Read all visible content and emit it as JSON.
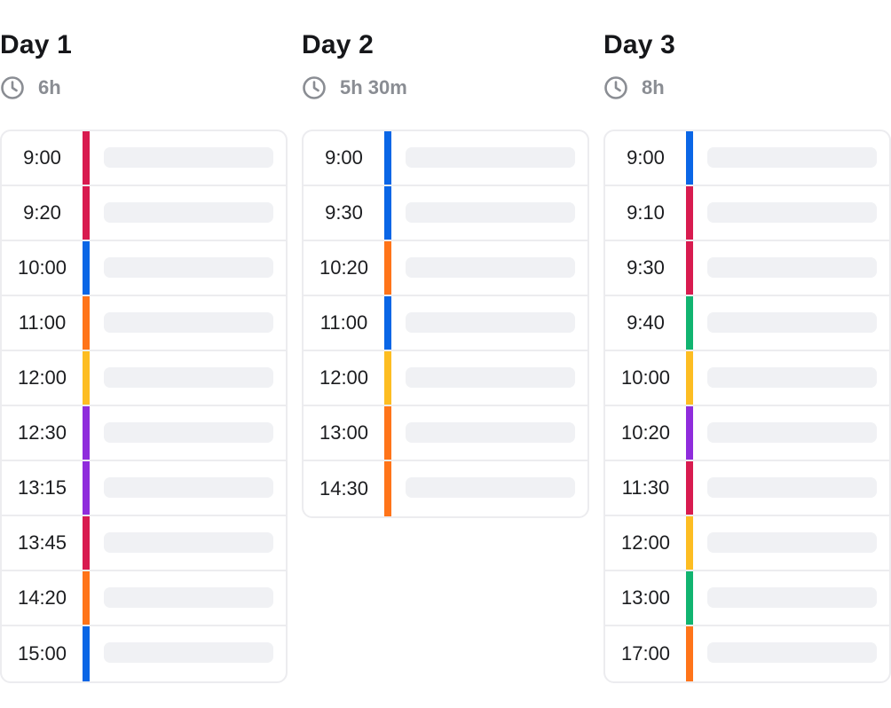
{
  "colors": {
    "red": "#d81b4f",
    "blue": "#0a66e6",
    "orange": "#ff7419",
    "yellow": "#fdbd22",
    "purple": "#8f2cdc",
    "green": "#11b470",
    "muted_text": "#8a8d93",
    "placeholder": "#f0f1f4",
    "border": "#ececef"
  },
  "days": [
    {
      "title": "Day 1",
      "duration": "6h",
      "duration_icon": "clock-icon",
      "slots": [
        {
          "time": "9:00",
          "color": "red"
        },
        {
          "time": "9:20",
          "color": "red"
        },
        {
          "time": "10:00",
          "color": "blue"
        },
        {
          "time": "11:00",
          "color": "orange"
        },
        {
          "time": "12:00",
          "color": "yellow"
        },
        {
          "time": "12:30",
          "color": "purple"
        },
        {
          "time": "13:15",
          "color": "purple"
        },
        {
          "time": "13:45",
          "color": "red"
        },
        {
          "time": "14:20",
          "color": "orange"
        },
        {
          "time": "15:00",
          "color": "blue"
        }
      ]
    },
    {
      "title": "Day 2",
      "duration": "5h 30m",
      "duration_icon": "clock-icon",
      "slots": [
        {
          "time": "9:00",
          "color": "blue"
        },
        {
          "time": "9:30",
          "color": "blue"
        },
        {
          "time": "10:20",
          "color": "orange"
        },
        {
          "time": "11:00",
          "color": "blue"
        },
        {
          "time": "12:00",
          "color": "yellow"
        },
        {
          "time": "13:00",
          "color": "orange"
        },
        {
          "time": "14:30",
          "color": "orange"
        }
      ]
    },
    {
      "title": "Day 3",
      "duration": "8h",
      "duration_icon": "clock-icon",
      "slots": [
        {
          "time": "9:00",
          "color": "blue"
        },
        {
          "time": "9:10",
          "color": "red"
        },
        {
          "time": "9:30",
          "color": "red"
        },
        {
          "time": "9:40",
          "color": "green"
        },
        {
          "time": "10:00",
          "color": "yellow"
        },
        {
          "time": "10:20",
          "color": "purple"
        },
        {
          "time": "11:30",
          "color": "red"
        },
        {
          "time": "12:00",
          "color": "yellow"
        },
        {
          "time": "13:00",
          "color": "green"
        },
        {
          "time": "17:00",
          "color": "orange"
        }
      ]
    }
  ]
}
